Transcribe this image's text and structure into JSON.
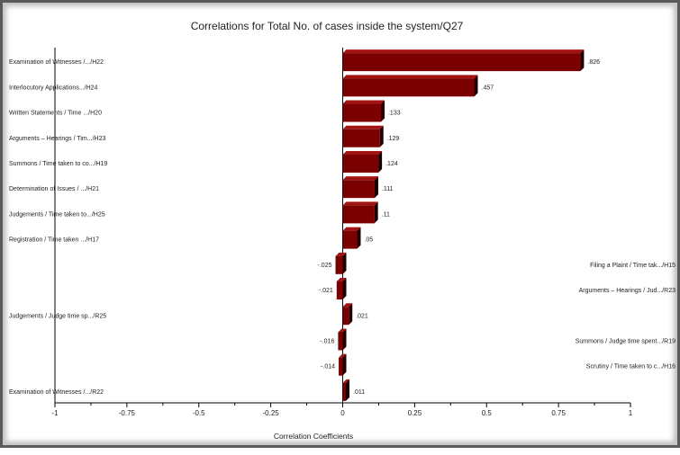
{
  "chart_data": {
    "type": "bar",
    "orientation": "horizontal",
    "title": "Correlations for Total No. of cases inside the system/Q27",
    "xlabel": "Correlation Coefficients",
    "xlim": [
      -1,
      1
    ],
    "xticks": [
      "-1",
      "-0.75",
      "-0.5",
      "-0.25",
      "0",
      "0.25",
      "0.5",
      "0.75",
      "1"
    ],
    "categories": [
      "Examination of Witnesses /.../H22",
      "Interlocutory Applications.../H24",
      "Written Statements / Time .../H20",
      "Arguments – Hearings / Tim.../H23",
      "Summons / Time taken to co.../H19",
      "Determination of Issues / .../H21",
      "Judgements / Time taken to.../H25",
      "Registration / Time taken .../H17",
      "Filing a Plaint / Time tak.../H15",
      "Arguments – Hearings / Jud.../R23",
      "Judgements / Judge time sp.../R25",
      "Summons / Judge time spent.../R19",
      "Scrutiny / Time taken to c.../H16",
      "Examination of Witnesses /.../R22"
    ],
    "values": [
      0.826,
      0.457,
      0.133,
      0.129,
      0.124,
      0.111,
      0.11,
      0.05,
      -0.025,
      -0.021,
      0.021,
      -0.016,
      -0.014,
      0.011
    ],
    "value_labels": [
      ".826",
      ".457",
      ".133",
      ".129",
      ".124",
      ".111",
      ".11",
      ".05",
      "-.025",
      "-.021",
      ".021",
      "-.016",
      "-.014",
      ".011"
    ],
    "bar_color": "#7b0000",
    "grid": false
  }
}
